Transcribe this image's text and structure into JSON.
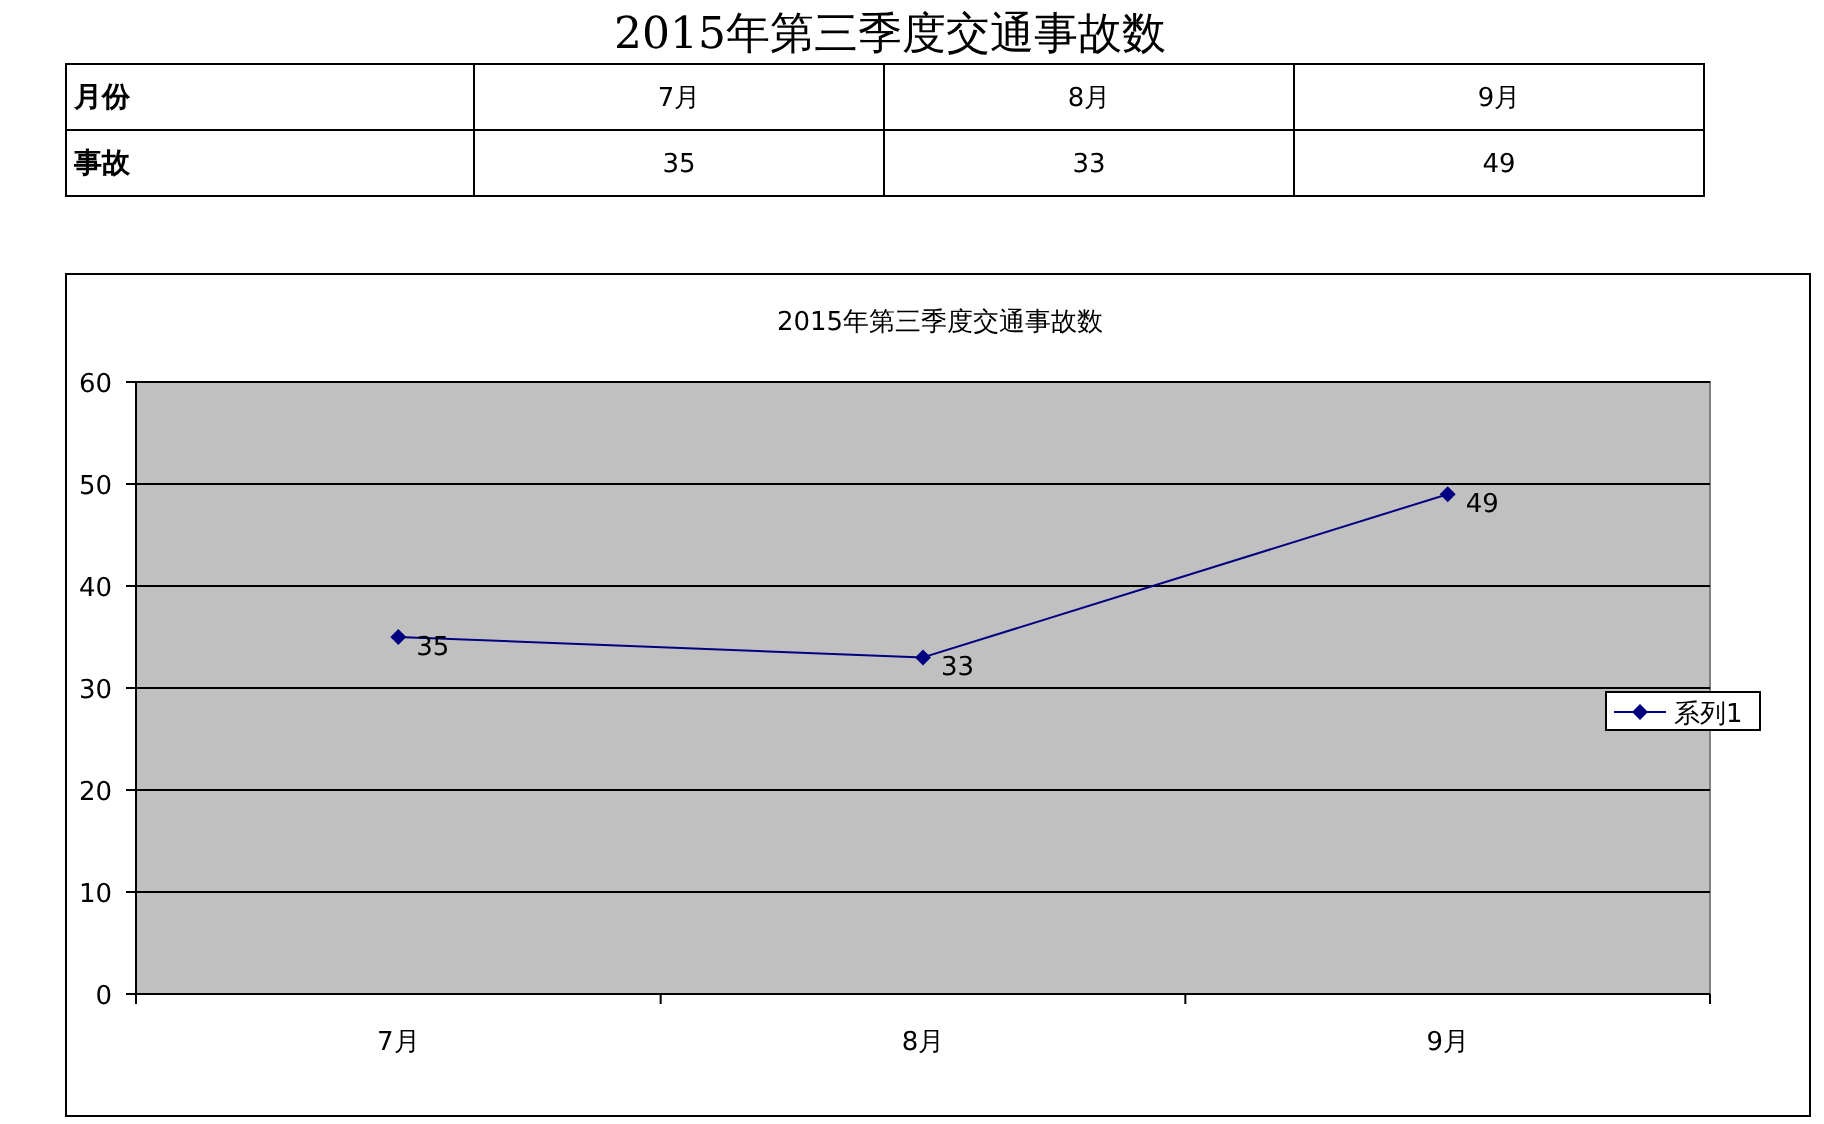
{
  "chart_data": {
    "type": "line",
    "title": "2015年第三季度交通事故数",
    "categories": [
      "7月",
      "8月",
      "9月"
    ],
    "series": [
      {
        "name": "系列1",
        "color": "#000080",
        "values": [
          35,
          33,
          49
        ]
      }
    ],
    "ylim": [
      0,
      60
    ],
    "yticks": [
      0,
      10,
      20,
      30,
      40,
      50,
      60
    ],
    "grid": "y",
    "legend": "right",
    "marker": "diamond",
    "data_labels": true,
    "annotations": [
      "2015年第三季度交通事故数",
      "月份",
      "事故",
      "35",
      "33",
      "49"
    ]
  }
}
